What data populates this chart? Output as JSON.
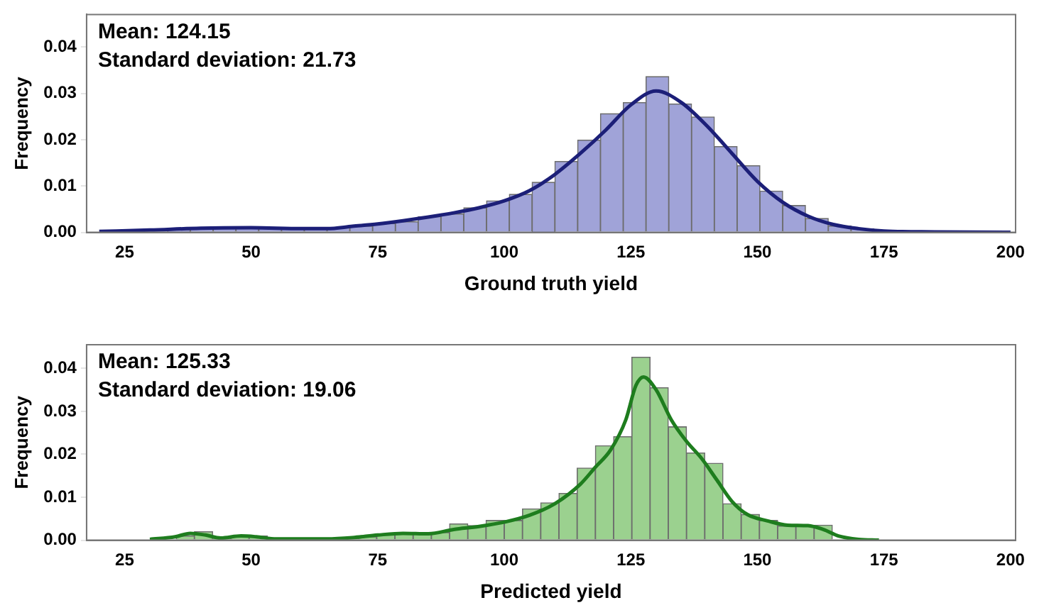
{
  "chart_data": [
    {
      "type": "histogram",
      "xlabel": "Ground truth yield",
      "ylabel": "Frequency",
      "annotations": [
        "Mean: 124.15",
        "Standard deviation: 21.73"
      ],
      "xlim": [
        17.5,
        201
      ],
      "ylim": [
        0,
        0.047
      ],
      "xticks": [
        25,
        50,
        75,
        100,
        125,
        150,
        175,
        200
      ],
      "yticks": [
        {
          "value": 0,
          "label": "0.00"
        },
        {
          "value": 0.01,
          "label": "0.01"
        },
        {
          "value": 0.02,
          "label": "0.02"
        },
        {
          "value": 0.03,
          "label": "0.03"
        },
        {
          "value": 0.04,
          "label": "0.04"
        }
      ],
      "grid": false,
      "series": [
        {
          "color": "#a0a3d8",
          "bins": [
            20,
            24.5,
            29,
            33.5,
            38,
            42.5,
            47,
            51.5,
            56,
            60.5,
            65,
            69.5,
            74,
            78.5,
            83,
            87.5,
            92,
            96.5,
            101,
            105.5,
            110,
            114.5,
            119,
            123.5,
            128,
            132.5,
            137,
            141.5,
            146,
            150.5,
            155,
            159.5,
            164,
            168.5,
            173,
            177.5,
            182,
            186.5,
            191,
            195.5,
            200
          ],
          "values": [
            null,
            0.0003,
            0.0004,
            0.0006,
            0.0008,
            0.001,
            0.001,
            0.0009,
            0.0008,
            0.0007,
            0.001,
            0.0014,
            0.0019,
            0.0023,
            0.0034,
            0.004,
            0.0053,
            0.0068,
            0.0082,
            0.0108,
            0.0153,
            0.0199,
            0.0256,
            0.028,
            0.0336,
            0.0277,
            0.0249,
            0.0185,
            0.0144,
            0.0089,
            0.0058,
            0.003,
            0.0014,
            0.0008,
            0.0004,
            0.0002,
            0.0001,
            0.0001,
            0,
            0
          ]
        },
        {
          "type": "line",
          "color": "#1c1f78",
          "x": [
            20,
            30,
            40,
            50,
            60,
            65,
            70,
            75,
            80,
            85,
            90,
            95,
            100,
            105,
            110,
            115,
            120,
            125,
            130,
            135,
            140,
            145,
            150,
            155,
            160,
            165,
            170,
            175,
            185,
            200
          ],
          "values": [
            0.0002,
            0.0005,
            0.0009,
            0.001,
            0.0008,
            0.0008,
            0.0013,
            0.0018,
            0.0025,
            0.0033,
            0.0042,
            0.0053,
            0.0068,
            0.009,
            0.0125,
            0.017,
            0.022,
            0.0275,
            0.0305,
            0.028,
            0.023,
            0.017,
            0.011,
            0.0065,
            0.0035,
            0.0017,
            0.0008,
            0.0003,
            0.0001,
            0
          ]
        }
      ]
    },
    {
      "type": "histogram",
      "xlabel": "Predicted yield",
      "ylabel": "Frequency",
      "annotations": [
        "Mean: 125.33",
        "Standard deviation: 19.06"
      ],
      "xlim": [
        17.5,
        201
      ],
      "ylim": [
        0,
        0.0455
      ],
      "xticks": [
        25,
        50,
        75,
        100,
        125,
        150,
        175,
        200
      ],
      "yticks": [
        {
          "value": 0,
          "label": "0.00"
        },
        {
          "value": 0.01,
          "label": "0.01"
        },
        {
          "value": 0.02,
          "label": "0.02"
        },
        {
          "value": 0.03,
          "label": "0.03"
        },
        {
          "value": 0.04,
          "label": "0.04"
        }
      ],
      "grid": false,
      "series": [
        {
          "color": "#9bd18f",
          "bins": [
            31.6,
            35.2,
            38.8,
            42.4,
            46,
            49.6,
            53.2,
            56.8,
            60.4,
            64,
            67.6,
            71.2,
            74.8,
            78.4,
            82,
            85.6,
            89.2,
            92.8,
            96.4,
            100,
            103.6,
            107.2,
            110.8,
            114.4,
            118,
            121.6,
            125.2,
            128.8,
            132.4,
            136,
            139.6,
            143.2,
            146.8,
            150.4,
            154,
            157.6,
            161.2,
            164.8
          ],
          "values": [
            null,
            0.001,
            0.002,
            0.0005,
            0.0008,
            0.001,
            0.0004,
            0.0003,
            0.0003,
            0.0003,
            0.0004,
            0.0008,
            0.0014,
            0.0018,
            0.0016,
            0.0018,
            0.0038,
            0.0034,
            0.0046,
            0.0046,
            0.0073,
            0.0087,
            0.0109,
            0.0168,
            0.022,
            0.0241,
            0.0426,
            0.0355,
            0.0264,
            0.0203,
            0.0179,
            0.0085,
            0.006,
            0.0046,
            0.0033,
            0.0033,
            0.0035
          ]
        },
        {
          "type": "line",
          "color": "#1e7d1e",
          "x": [
            30,
            35,
            38,
            41,
            44,
            48,
            51,
            55,
            65,
            70,
            75,
            80,
            85,
            90,
            95,
            100,
            105,
            110,
            115,
            118,
            121,
            124,
            126,
            127.5,
            130,
            133,
            136,
            139,
            142,
            145,
            148,
            152,
            156,
            160,
            163,
            166,
            170,
            174
          ],
          "values": [
            0.0002,
            0.0008,
            0.0016,
            0.0012,
            0.0005,
            0.001,
            0.0008,
            0.0003,
            0.0003,
            0.0006,
            0.0012,
            0.0016,
            0.0015,
            0.0025,
            0.0032,
            0.0042,
            0.0058,
            0.0085,
            0.013,
            0.017,
            0.021,
            0.028,
            0.036,
            0.038,
            0.035,
            0.028,
            0.023,
            0.019,
            0.014,
            0.009,
            0.006,
            0.0045,
            0.0035,
            0.0034,
            0.0025,
            0.001,
            0.0002,
            0
          ]
        }
      ]
    }
  ]
}
